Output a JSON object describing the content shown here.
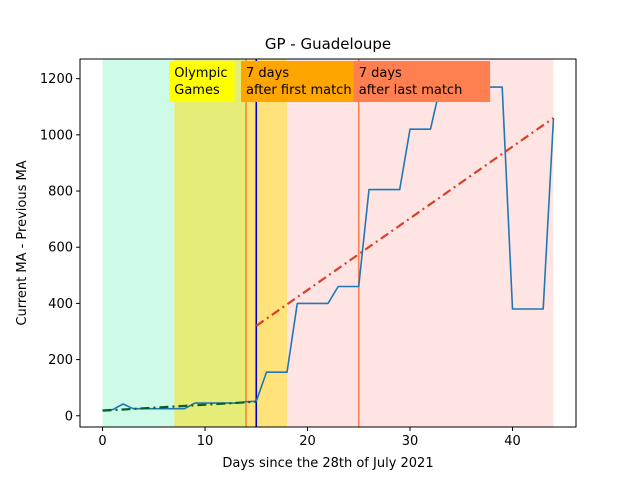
{
  "chart_data": {
    "type": "line",
    "title": "GP - Guadeloupe",
    "xlabel": "Days since the 28th of July 2021",
    "ylabel": "Current MA - Previous MA",
    "xlim": [
      -2.2,
      46.2
    ],
    "ylim": [
      -40,
      1270
    ],
    "xticks": [
      0,
      10,
      20,
      30,
      40
    ],
    "yticks": [
      0,
      200,
      400,
      600,
      800,
      1000,
      1200
    ],
    "grid": false,
    "colors": {
      "series": "#1f77b4",
      "fit_before": "#0a5f2a",
      "fit_after": "#d9402a",
      "first_match_line": "#f28c28",
      "olympics_end_line": "#0000cc",
      "last_match_line": "#ff7f50"
    },
    "bands": [
      {
        "x0": 0,
        "x1": 7,
        "color": "#cdfbe8"
      },
      {
        "x0": 7,
        "x1": 14,
        "color": "#e6ec78"
      },
      {
        "x0": 14,
        "x1": 18,
        "color": "#ffe27a"
      },
      {
        "x0": 18,
        "x1": 44,
        "color": "#ffe4e4"
      }
    ],
    "vlines": [
      {
        "x": 14,
        "color": "#f28c28"
      },
      {
        "x": 15,
        "color": "#0000cc"
      },
      {
        "x": 25,
        "color": "#ff7f50"
      }
    ],
    "annotations": [
      {
        "lines": [
          "Olympic",
          "Games"
        ],
        "x": 7,
        "bg": "#ffff00"
      },
      {
        "lines": [
          "7 days",
          "after first match"
        ],
        "x": 14,
        "bg": "#ffa500"
      },
      {
        "lines": [
          "7 days",
          "after last match"
        ],
        "x": 25,
        "bg": "#ff7f50"
      }
    ],
    "series": [
      {
        "x": [
          0,
          1,
          2,
          3,
          4,
          5,
          6,
          7,
          8,
          9,
          10,
          11,
          12,
          13,
          14,
          15,
          16,
          17,
          18,
          19,
          20,
          21,
          22,
          23,
          24,
          25,
          26,
          27,
          28,
          29,
          30,
          31,
          32,
          33,
          34,
          35,
          36,
          37,
          38,
          39,
          40,
          41,
          42,
          43,
          44
        ],
        "y": [
          20,
          22,
          42,
          25,
          25,
          25,
          25,
          25,
          25,
          45,
          45,
          45,
          45,
          45,
          50,
          52,
          155,
          155,
          155,
          400,
          400,
          400,
          400,
          460,
          460,
          460,
          805,
          805,
          805,
          805,
          1020,
          1020,
          1020,
          1180,
          1200,
          1250,
          1170,
          1170,
          1170,
          1170,
          380,
          380,
          380,
          380,
          1060
        ]
      }
    ],
    "fits": [
      {
        "x": [
          0,
          15
        ],
        "y": [
          18,
          50
        ],
        "color": "#0a5f2a"
      },
      {
        "x": [
          15,
          44
        ],
        "y": [
          320,
          1060
        ],
        "color": "#d9402a"
      }
    ]
  }
}
